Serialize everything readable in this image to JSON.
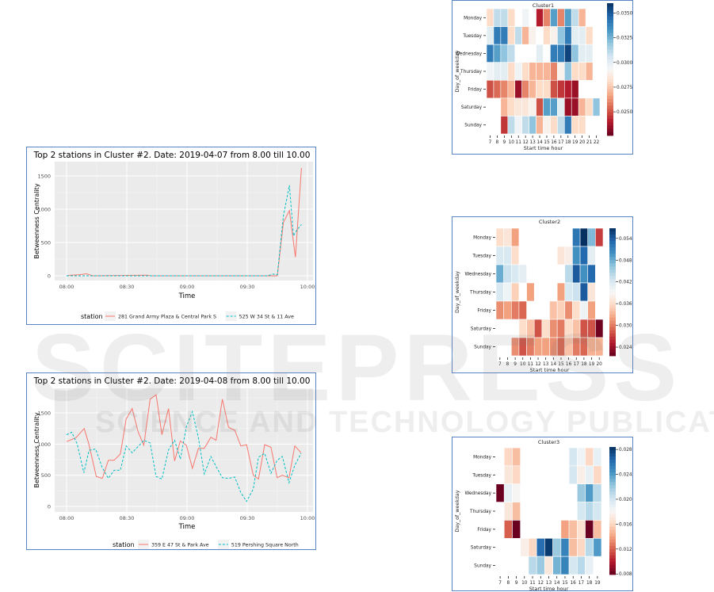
{
  "watermark": {
    "brand": "SCITEPRESS",
    "tagline": "SCIENCE AND TECHNOLOGY PUBLICATIONS"
  },
  "chart_data": [
    {
      "type": "line",
      "title": "Top 2 stations in Cluster #2. Date: 2019-04-07 from 8.00 till 10.00",
      "xlabel": "Time",
      "ylabel": "Betweenness Centrality",
      "xticks": [
        {
          "v": 0,
          "label": "08:00"
        },
        {
          "v": 30,
          "label": "08:30"
        },
        {
          "v": 60,
          "label": "09:00"
        },
        {
          "v": 90,
          "label": "09:30"
        },
        {
          "v": 120,
          "label": "10:00"
        }
      ],
      "yticks": [
        0,
        500,
        1000,
        1500
      ],
      "xlim_minutes": [
        0,
        120
      ],
      "ylim": [
        0,
        1650
      ],
      "legend": {
        "title": "station",
        "placement": "bottom"
      },
      "series": [
        {
          "name": "281 Grand Army Plaza & Central Park S",
          "color": "#f8766d",
          "dash": false,
          "x": [
            0,
            2,
            6,
            10,
            13,
            40,
            42,
            105,
            108,
            111,
            114,
            117
          ],
          "y": [
            0,
            10,
            15,
            30,
            0,
            10,
            0,
            0,
            800,
            980,
            280,
            1620
          ]
        },
        {
          "name": "525 W 34 St & 11 Ave",
          "color": "#00bfc4",
          "dash": true,
          "x": [
            0,
            13,
            100,
            103,
            105,
            108,
            111,
            113,
            115,
            117
          ],
          "y": [
            0,
            0,
            0,
            25,
            15,
            900,
            1360,
            600,
            700,
            770
          ]
        }
      ]
    },
    {
      "type": "line",
      "title": "Top 2 stations in Cluster #2. Date: 2019-04-08 from 8.00 till 10.00",
      "xlabel": "Time",
      "ylabel": "Betweenness Centrality",
      "xticks": [
        {
          "v": 0,
          "label": "08:00"
        },
        {
          "v": 30,
          "label": "08:30"
        },
        {
          "v": 60,
          "label": "09:00"
        },
        {
          "v": 90,
          "label": "09:30"
        },
        {
          "v": 120,
          "label": "10:00"
        }
      ],
      "yticks": [
        0,
        500,
        1000,
        1500
      ],
      "xlim_minutes": [
        0,
        120
      ],
      "ylim": [
        0,
        1850
      ],
      "legend": {
        "title": "station",
        "placement": "bottom"
      },
      "series": [
        {
          "name": "359 E 47 St & Park Ave",
          "color": "#f8766d",
          "dash": false,
          "x": [
            0,
            4.6,
            8.8,
            11.1,
            14.8,
            17.8,
            20.8,
            23.7,
            26.8,
            29.7,
            32.7,
            35.6,
            38.5,
            41.6,
            44.6,
            47.5,
            50.8,
            53.8,
            56.7,
            59.7,
            62.7,
            65.7,
            68.6,
            71.9,
            74.5,
            77.6,
            80.7,
            83.8,
            86.8,
            89.7,
            93,
            95.6,
            98.7,
            101.8,
            104.9,
            107.5,
            110.8,
            113.7,
            116.8
          ],
          "y": [
            1040,
            1100,
            1250,
            1000,
            480,
            450,
            740,
            740,
            840,
            1400,
            1570,
            1200,
            980,
            1720,
            1790,
            1150,
            1570,
            730,
            1050,
            980,
            610,
            930,
            930,
            1110,
            1060,
            1720,
            1270,
            1220,
            970,
            990,
            500,
            440,
            990,
            950,
            460,
            500,
            460,
            970,
            860
          ]
        },
        {
          "name": "519 Pershing Square North",
          "color": "#00bfc4",
          "dash": true,
          "x": [
            0,
            2.6,
            5.3,
            8.6,
            11.2,
            14.5,
            17.8,
            20.8,
            23.7,
            26.8,
            29.7,
            32.7,
            35.6,
            38.5,
            41.6,
            44.6,
            47.5,
            50.8,
            53.8,
            56.7,
            59.7,
            62.7,
            65.7,
            68.6,
            71.9,
            74.5,
            77.6,
            80.7,
            83.8,
            86.8,
            89.7,
            93,
            95.6,
            98.7,
            101.8,
            104.9,
            107.5,
            110.8,
            113.7,
            116.8
          ],
          "y": [
            1150,
            1190,
            1000,
            540,
            900,
            920,
            620,
            450,
            580,
            580,
            970,
            860,
            960,
            1060,
            1020,
            480,
            440,
            910,
            1060,
            760,
            1280,
            1520,
            1100,
            520,
            800,
            640,
            460,
            450,
            470,
            220,
            80,
            280,
            790,
            850,
            530,
            740,
            800,
            380,
            660,
            850
          ]
        }
      ]
    },
    {
      "type": "heatmap",
      "title": "Cluster1",
      "xlabel": "Start time hour",
      "ylabel": "Day_of_weekday",
      "rows": [
        "Monday",
        "Tuesday",
        "Wednesday",
        "Thursday",
        "Friday",
        "Saturday",
        "Sunday"
      ],
      "cols": [
        "7",
        "8",
        "9",
        "10",
        "11",
        "12",
        "13",
        "14",
        "15",
        "16",
        "17",
        "18",
        "19",
        "20",
        "21",
        "22"
      ],
      "vrange": [
        0.0226,
        0.036
      ],
      "colorbar_ticks": [
        "0.0250",
        "0.0275",
        "0.0300",
        "0.0325",
        "0.0350"
      ],
      "values": [
        [
          0.028,
          0.031,
          0.031,
          0.028,
          null,
          0.0295,
          null,
          0.024,
          0.026,
          0.033,
          0.026,
          0.033,
          0.031,
          0.027,
          null,
          null
        ],
        [
          0.03,
          0.034,
          0.034,
          0.028,
          0.031,
          0.027,
          0.029,
          null,
          0.028,
          0.029,
          0.032,
          0.034,
          0.03,
          0.03,
          0.028,
          null
        ],
        [
          0.034,
          0.033,
          0.032,
          0.031,
          null,
          null,
          null,
          0.03,
          null,
          0.034,
          0.034,
          0.0355,
          0.032,
          0.03,
          0.03,
          null
        ],
        [
          0.0295,
          0.03,
          0.03,
          0.028,
          0.0295,
          0.028,
          0.027,
          0.027,
          0.027,
          0.026,
          0.029,
          0.032,
          0.028,
          0.028,
          0.027,
          null
        ],
        [
          0.025,
          0.0255,
          0.026,
          0.027,
          0.0235,
          0.026,
          0.027,
          0.028,
          0.028,
          0.025,
          0.0245,
          0.024,
          0.0235,
          null,
          null,
          null
        ],
        [
          null,
          null,
          0.027,
          0.028,
          0.0285,
          0.0285,
          0.029,
          0.025,
          0.033,
          0.033,
          0.03,
          0.0235,
          0.0235,
          0.027,
          0.028,
          0.032
        ],
        [
          null,
          null,
          0.0245,
          0.031,
          0.0295,
          0.031,
          0.032,
          0.027,
          0.029,
          0.028,
          0.031,
          0.034,
          0.028,
          0.028,
          null,
          null
        ]
      ]
    },
    {
      "type": "heatmap",
      "title": "Cluster2",
      "xlabel": "Start time hour",
      "ylabel": "Day_of_weekday",
      "rows": [
        "Monday",
        "Tuesday",
        "Wednesday",
        "Thursday",
        "Friday",
        "Saturday",
        "Sunday"
      ],
      "cols": [
        "7",
        "8",
        "9",
        "10",
        "11",
        "12",
        "13",
        "14",
        "15",
        "16",
        "17",
        "18",
        "19",
        "20"
      ],
      "vrange": [
        0.0216,
        0.0568
      ],
      "colorbar_ticks": [
        "0.024",
        "0.030",
        "0.036",
        "0.042",
        "0.048",
        "0.054"
      ],
      "values": [
        [
          0.036,
          0.037,
          0.032,
          null,
          null,
          null,
          null,
          null,
          null,
          null,
          0.052,
          0.057,
          0.047,
          0.027
        ],
        [
          0.042,
          0.042,
          0.036,
          null,
          null,
          null,
          null,
          null,
          0.037,
          0.038,
          0.05,
          0.053,
          0.041,
          null
        ],
        [
          0.048,
          0.043,
          0.042,
          0.041,
          null,
          null,
          null,
          null,
          null,
          0.044,
          0.054,
          0.05,
          0.053,
          null
        ],
        [
          0.042,
          0.04,
          0.035,
          null,
          0.032,
          null,
          null,
          null,
          0.032,
          0.042,
          0.043,
          0.054,
          0.037,
          null
        ],
        [
          0.031,
          0.032,
          0.03,
          0.029,
          null,
          null,
          null,
          0.034,
          0.035,
          0.031,
          0.036,
          0.04,
          0.032,
          null
        ],
        [
          null,
          null,
          null,
          0.036,
          0.034,
          0.028,
          0.036,
          0.031,
          0.03,
          0.036,
          0.034,
          0.028,
          0.028,
          0.022
        ],
        [
          null,
          null,
          0.031,
          0.028,
          0.03,
          0.032,
          0.032,
          0.031,
          0.029,
          0.034,
          0.03,
          0.029,
          0.033,
          0.033
        ]
      ]
    },
    {
      "type": "heatmap",
      "title": "Cluster3",
      "xlabel": "Start time hour",
      "ylabel": "Day_of_weekday",
      "rows": [
        "Monday",
        "Tuesday",
        "Wednesday",
        "Thursday",
        "Friday",
        "Saturday",
        "Sunday"
      ],
      "cols": [
        "7",
        "8",
        "9",
        "10",
        "11",
        "12",
        "13",
        "14",
        "15",
        "16",
        "17",
        "18",
        "19"
      ],
      "vrange": [
        0.0079,
        0.0284
      ],
      "colorbar_ticks": [
        "0.008",
        "0.012",
        "0.016",
        "0.020",
        "0.024",
        "0.028"
      ],
      "values": [
        [
          null,
          0.016,
          0.015,
          null,
          null,
          null,
          null,
          null,
          null,
          0.02,
          0.0185,
          0.016,
          0.019
        ],
        [
          null,
          0.017,
          0.016,
          null,
          null,
          null,
          null,
          null,
          null,
          0.02,
          0.0175,
          0.019,
          0.016
        ],
        [
          0.008,
          0.019,
          0.018,
          null,
          null,
          null,
          null,
          null,
          null,
          null,
          0.022,
          0.024,
          0.021
        ],
        [
          null,
          0.017,
          0.015,
          null,
          null,
          null,
          null,
          null,
          null,
          null,
          0.02,
          0.021,
          0.02
        ],
        [
          null,
          0.012,
          0.008,
          null,
          null,
          null,
          null,
          null,
          0.014,
          0.015,
          0.0165,
          0.008,
          0.015
        ],
        [
          null,
          null,
          null,
          0.0175,
          0.016,
          0.026,
          0.028,
          0.022,
          0.025,
          0.015,
          0.016,
          0.021,
          0.024
        ],
        [
          null,
          null,
          null,
          null,
          0.021,
          0.022,
          0.017,
          0.023,
          0.025,
          0.02,
          0.021,
          0.019,
          null
        ]
      ]
    }
  ]
}
